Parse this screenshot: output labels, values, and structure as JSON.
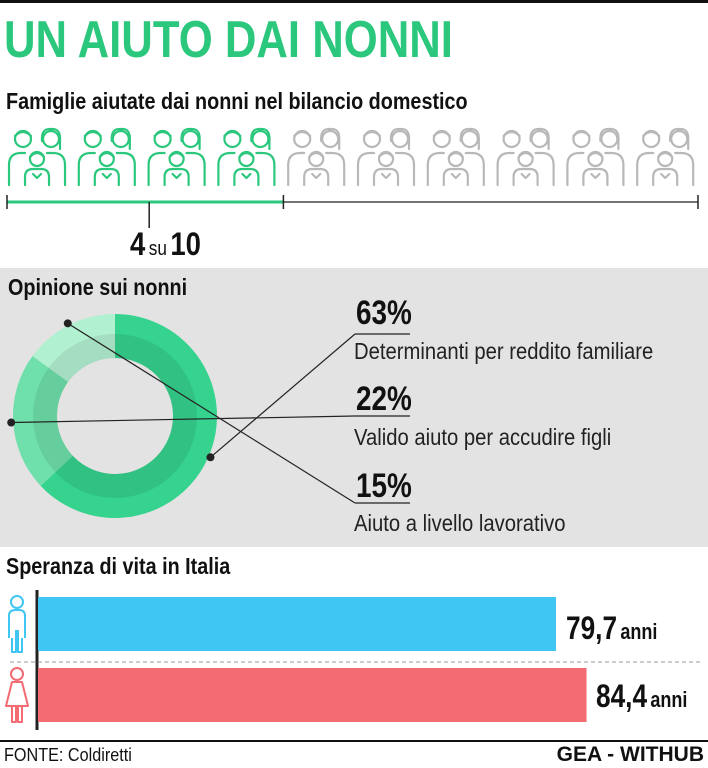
{
  "title": "UN AIUTO DAI NONNI",
  "families": {
    "title": "Famiglie aiutate dai nonni nel bilancio domestico",
    "helped": 4,
    "total": 10,
    "ratio_number": "4",
    "ratio_su": "su",
    "ratio_total": "10",
    "active_color": "#2bc77d",
    "inactive_color": "#b8b8b8"
  },
  "opinion": {
    "title": "Opinione sui nonni"
  },
  "life": {
    "title": "Speranza di vita in Italia"
  },
  "chart_data": [
    {
      "type": "pie",
      "title": "Opinione sui nonni",
      "categories": [
        "Determinanti per reddito familiare",
        "Valido aiuto per accudire figli",
        "Aiuto a livello lavorativo"
      ],
      "values": [
        63,
        22,
        15
      ],
      "labels": [
        "63%",
        "22%",
        "15%"
      ],
      "colors": [
        "#36d38f",
        "#6fe0ab",
        "#b2f0d2"
      ]
    },
    {
      "type": "bar",
      "title": "Speranza di vita in Italia",
      "categories": [
        "uomini",
        "donne"
      ],
      "values": [
        79.7,
        84.4
      ],
      "labels": [
        "79,7",
        "84,4"
      ],
      "unit": "anni",
      "colors": [
        "#3fc6f2",
        "#f36b73"
      ],
      "icons": [
        "male-icon",
        "female-icon"
      ]
    }
  ],
  "footer": {
    "source": "FONTE: Coldiretti",
    "credit": "GEA - WITHUB"
  }
}
